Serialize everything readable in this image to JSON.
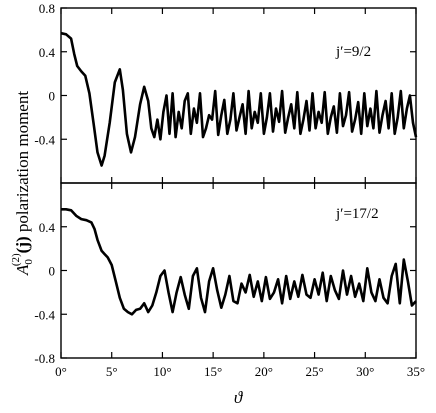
{
  "chart_data": [
    {
      "type": "line",
      "panel": "top",
      "annotation": "j′=9/2",
      "xlim": [
        0,
        35
      ],
      "ylim": [
        -0.8,
        0.8
      ],
      "yticks": [
        0.8,
        0.4,
        0,
        -0.4
      ],
      "yticklabels": [
        "0.8",
        "0.4",
        "0",
        "-0.4"
      ],
      "grid": false,
      "series": [
        {
          "x": [
            0,
            0.5,
            1,
            1.3,
            1.6,
            2.0,
            2.4,
            2.8,
            3.2,
            3.6,
            4.0,
            4.3,
            4.8,
            5.3,
            5.8,
            6.1,
            6.5,
            6.9,
            7.3,
            7.8,
            8.2,
            8.6,
            8.9,
            9.2,
            9.5,
            9.8,
            10.1,
            10.4,
            10.7,
            11.0,
            11.3,
            11.6,
            11.9,
            12.2,
            12.5,
            12.8,
            13.1,
            13.4,
            13.7,
            14.0,
            14.3,
            14.6,
            14.9,
            15.2,
            15.5,
            15.8,
            16.1,
            16.4,
            16.7,
            17.0,
            17.3,
            17.6,
            17.9,
            18.2,
            18.5,
            18.8,
            19.1,
            19.4,
            19.7,
            20.0,
            20.3,
            20.6,
            20.9,
            21.2,
            21.5,
            21.8,
            22.1,
            22.4,
            22.7,
            23.0,
            23.3,
            23.6,
            23.9,
            24.2,
            24.5,
            24.8,
            25.1,
            25.4,
            25.7,
            26.0,
            26.3,
            26.6,
            26.9,
            27.2,
            27.5,
            27.8,
            28.1,
            28.4,
            28.7,
            29.0,
            29.3,
            29.6,
            29.9,
            30.2,
            30.5,
            30.8,
            31.1,
            31.4,
            31.7,
            32.0,
            32.3,
            32.6,
            32.9,
            33.2,
            33.5,
            33.8,
            34.1,
            34.4,
            34.7,
            35.0
          ],
          "y": [
            0.57,
            0.56,
            0.52,
            0.38,
            0.27,
            0.22,
            0.18,
            0.02,
            -0.25,
            -0.52,
            -0.64,
            -0.55,
            -0.25,
            0.12,
            0.24,
            0.05,
            -0.35,
            -0.52,
            -0.38,
            -0.08,
            0.08,
            -0.05,
            -0.3,
            -0.38,
            -0.22,
            -0.4,
            -0.15,
            0.0,
            -0.35,
            0.02,
            -0.38,
            -0.15,
            -0.3,
            -0.05,
            0.02,
            -0.35,
            -0.12,
            -0.25,
            0.02,
            -0.38,
            -0.3,
            -0.18,
            -0.22,
            0.04,
            -0.36,
            -0.18,
            -0.04,
            -0.35,
            -0.22,
            0.02,
            -0.32,
            -0.2,
            -0.08,
            -0.35,
            0.04,
            -0.3,
            -0.15,
            -0.25,
            0.02,
            -0.35,
            -0.2,
            0.02,
            -0.33,
            -0.12,
            -0.24,
            0.04,
            -0.34,
            -0.2,
            -0.08,
            -0.3,
            0.03,
            -0.35,
            -0.22,
            -0.05,
            -0.32,
            0.02,
            -0.3,
            -0.15,
            -0.25,
            0.03,
            -0.35,
            -0.2,
            -0.1,
            -0.34,
            0.02,
            -0.28,
            -0.18,
            0.03,
            -0.33,
            -0.22,
            -0.06,
            -0.35,
            0.02,
            -0.28,
            -0.12,
            -0.3,
            0.04,
            -0.34,
            -0.18,
            -0.05,
            -0.3,
            0.02,
            -0.35,
            -0.2,
            0.04,
            -0.3,
            -0.12,
            0.0,
            -0.25,
            -0.38
          ]
        }
      ]
    },
    {
      "type": "line",
      "panel": "bottom",
      "annotation": "j′=17/2",
      "xlim": [
        0,
        35
      ],
      "ylim": [
        -0.8,
        0.8
      ],
      "yticks": [
        -0.8,
        -0.4,
        0,
        0.4
      ],
      "yticklabels": [
        "-0.8",
        "-0.4",
        "0",
        "0.4"
      ],
      "xticks": [
        0,
        5,
        10,
        15,
        20,
        25,
        30,
        35
      ],
      "xticklabels": [
        "0°",
        "5°",
        "10°",
        "15°",
        "20°",
        "25°",
        "30°",
        "35°"
      ],
      "grid": false,
      "series": [
        {
          "x": [
            0,
            0.5,
            1.0,
            1.5,
            2.0,
            2.5,
            3.0,
            3.3,
            3.6,
            4.0,
            4.3,
            4.6,
            5.0,
            5.4,
            5.8,
            6.2,
            6.6,
            7.0,
            7.4,
            7.8,
            8.2,
            8.6,
            9.0,
            9.4,
            9.8,
            10.2,
            10.6,
            11.0,
            11.4,
            11.8,
            12.2,
            12.6,
            13.0,
            13.4,
            13.8,
            14.2,
            14.6,
            15.0,
            15.4,
            15.8,
            16.2,
            16.6,
            17.0,
            17.4,
            17.8,
            18.2,
            18.6,
            19.0,
            19.4,
            19.8,
            20.2,
            20.6,
            21.0,
            21.4,
            21.8,
            22.2,
            22.6,
            23.0,
            23.4,
            23.8,
            24.2,
            24.6,
            25.0,
            25.4,
            25.8,
            26.2,
            26.6,
            27.0,
            27.4,
            27.8,
            28.2,
            28.6,
            29.0,
            29.4,
            29.8,
            30.2,
            30.6,
            31.0,
            31.4,
            31.8,
            32.2,
            32.6,
            33.0,
            33.4,
            33.8,
            34.2,
            34.6,
            35.0
          ],
          "y": [
            0.56,
            0.56,
            0.55,
            0.5,
            0.47,
            0.46,
            0.44,
            0.38,
            0.28,
            0.18,
            0.15,
            0.12,
            0.05,
            -0.1,
            -0.25,
            -0.35,
            -0.38,
            -0.4,
            -0.36,
            -0.35,
            -0.3,
            -0.38,
            -0.32,
            -0.2,
            -0.05,
            0.0,
            -0.2,
            -0.38,
            -0.2,
            -0.06,
            -0.22,
            -0.35,
            -0.05,
            0.02,
            -0.25,
            -0.38,
            -0.1,
            0.02,
            -0.18,
            -0.34,
            -0.22,
            -0.05,
            -0.28,
            -0.3,
            -0.12,
            -0.2,
            -0.04,
            -0.24,
            -0.1,
            -0.28,
            -0.06,
            -0.26,
            -0.2,
            -0.08,
            -0.3,
            -0.05,
            -0.26,
            -0.1,
            -0.24,
            -0.04,
            -0.22,
            -0.25,
            -0.08,
            -0.22,
            -0.02,
            -0.28,
            -0.05,
            -0.18,
            -0.26,
            0.0,
            -0.22,
            -0.05,
            -0.24,
            -0.12,
            -0.28,
            0.02,
            -0.2,
            -0.28,
            -0.08,
            -0.25,
            -0.3,
            -0.05,
            0.06,
            -0.3,
            0.1,
            -0.1,
            -0.32,
            -0.28
          ]
        }
      ]
    }
  ],
  "labels": {
    "ylabel_main": "polarization moment",
    "ylabel_symbol": "A",
    "ylabel_sub": "0",
    "ylabel_sup": "(2)",
    "ylabel_arg": "(j)",
    "xlabel": "ϑ"
  }
}
